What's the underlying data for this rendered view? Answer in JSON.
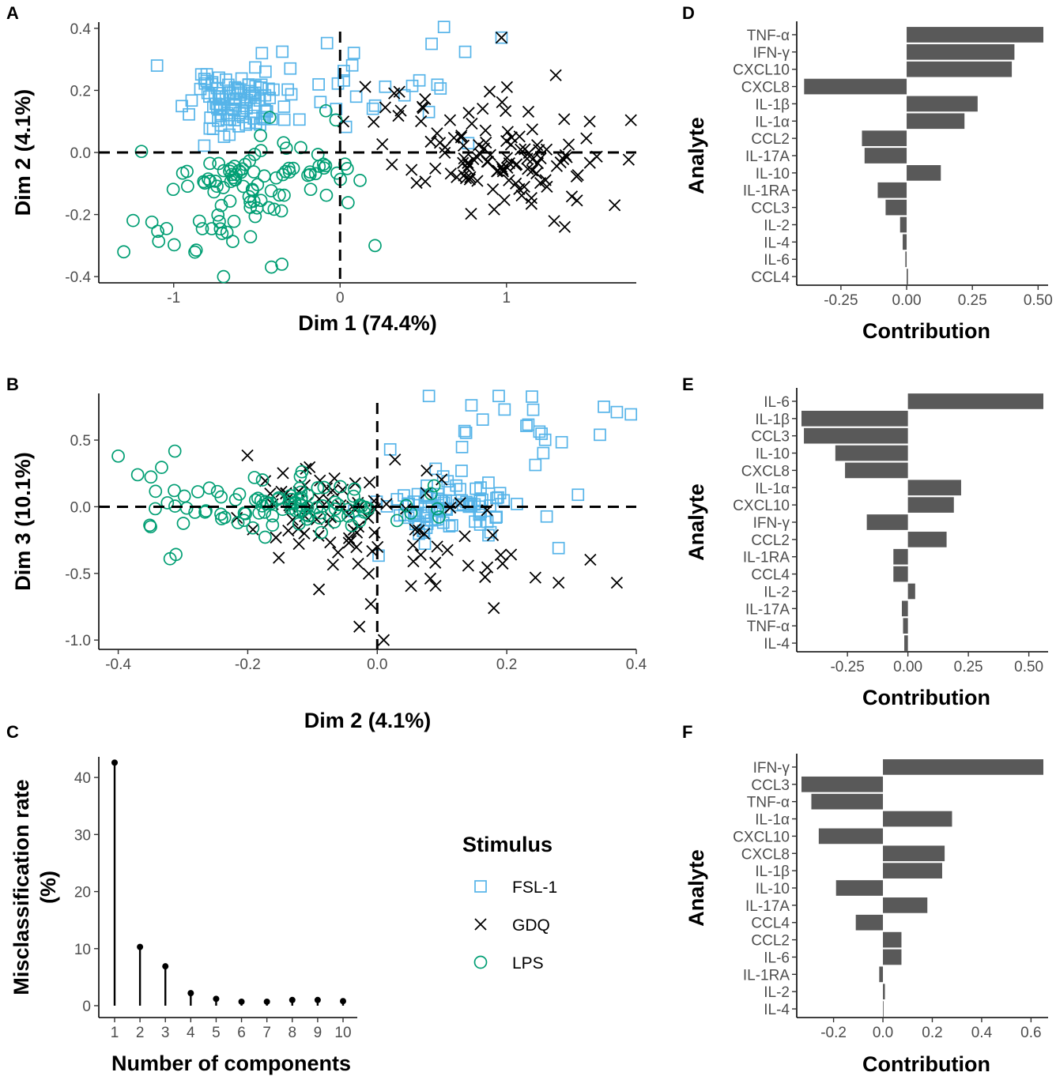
{
  "colors": {
    "FSL-1": "#56B4E9",
    "GDQ": "#000000",
    "LPS": "#009E73",
    "bar": "#595959"
  },
  "legend": {
    "title": "Stimulus",
    "items": [
      {
        "label": "FSL-1",
        "marker": "square"
      },
      {
        "label": "GDQ",
        "marker": "x"
      },
      {
        "label": "LPS",
        "marker": "circle"
      }
    ]
  },
  "chart_data": [
    {
      "id": "A",
      "panel_label": "A",
      "type": "scatter",
      "xlabel": "Dim 1 (74.4%)",
      "ylabel": "Dim 2 (4.1%)",
      "xlim": [
        -1.45,
        1.78
      ],
      "ylim": [
        -0.42,
        0.42
      ],
      "xticks": [
        -1,
        0,
        1
      ],
      "xtick_labels": [
        "-1",
        "0",
        "1"
      ],
      "yticks": [
        -0.4,
        -0.2,
        0.0,
        0.2,
        0.4
      ],
      "ytick_labels": [
        "-0.4",
        "-0.2",
        "0.0",
        "0.2",
        "0.4"
      ],
      "reference_lines": {
        "x": 0,
        "y": 0
      },
      "series": [
        {
          "name": "FSL-1",
          "marker": "square",
          "clusters": [
            {
              "cx": -0.62,
              "sx": 0.14,
              "cy": 0.15,
              "sy": 0.045,
              "n": 95
            },
            {
              "cx": -0.45,
              "sx": 0.25,
              "cy": 0.26,
              "sy": 0.04,
              "n": 12
            },
            {
              "cx": 0.25,
              "sx": 0.22,
              "cy": 0.22,
              "sy": 0.09,
              "n": 18
            }
          ],
          "points": [
            [
              0.55,
              0.35
            ],
            [
              0.97,
              0.37
            ],
            [
              0.77,
              0.03
            ],
            [
              -1.1,
              0.28
            ],
            [
              -0.47,
              0.32
            ]
          ]
        },
        {
          "name": "GDQ",
          "marker": "x",
          "clusters": [
            {
              "cx": 0.95,
              "sx": 0.28,
              "cy": -0.03,
              "sy": 0.075,
              "n": 100
            },
            {
              "cx": 0.7,
              "sx": 0.35,
              "cy": 0.15,
              "sy": 0.06,
              "n": 18
            }
          ],
          "points": [
            [
              0.97,
              0.37
            ],
            [
              1.65,
              -0.17
            ],
            [
              1.35,
              -0.24
            ],
            [
              1.5,
              0.1
            ],
            [
              0.02,
              0.1
            ]
          ]
        },
        {
          "name": "LPS",
          "marker": "circle",
          "clusters": [
            {
              "cx": -0.5,
              "sx": 0.2,
              "cy": -0.09,
              "sy": 0.065,
              "n": 65
            },
            {
              "cx": -0.85,
              "sx": 0.22,
              "cy": -0.24,
              "sy": 0.06,
              "n": 25
            },
            {
              "cx": -0.1,
              "sx": 0.09,
              "cy": -0.07,
              "sy": 0.05,
              "n": 12
            }
          ],
          "points": [
            [
              -1.3,
              -0.32
            ],
            [
              -0.7,
              -0.4
            ],
            [
              0.21,
              -0.3
            ],
            [
              0.12,
              -0.09
            ],
            [
              -0.35,
              -0.36
            ]
          ]
        }
      ]
    },
    {
      "id": "B",
      "panel_label": "B",
      "type": "scatter",
      "xlabel": "Dim 2 (4.1%)",
      "ylabel": "Dim 3 (10.1%)",
      "xlim": [
        -0.43,
        0.4
      ],
      "ylim": [
        -1.07,
        0.85
      ],
      "xticks": [
        -0.4,
        -0.2,
        0.0,
        0.2,
        0.4
      ],
      "xtick_labels": [
        "-0.4",
        "-0.2",
        "0.0",
        "0.2",
        "0.4"
      ],
      "yticks": [
        -1.0,
        -0.5,
        0.0,
        0.5
      ],
      "ytick_labels": [
        "-1.0",
        "-0.5",
        "0.0",
        "0.5"
      ],
      "reference_lines": {
        "x": 0,
        "y": 0
      },
      "series": [
        {
          "name": "FSL-1",
          "marker": "square",
          "clusters": [
            {
              "cx": 0.1,
              "sx": 0.055,
              "cy": 0.0,
              "sy": 0.11,
              "n": 85
            },
            {
              "cx": 0.2,
              "sx": 0.09,
              "cy": 0.55,
              "sy": 0.15,
              "n": 22
            }
          ],
          "points": [
            [
              0.37,
              0.71
            ],
            [
              0.35,
              0.75
            ],
            [
              0.31,
              0.09
            ],
            [
              0.28,
              -0.31
            ],
            [
              0.02,
              0.43
            ]
          ]
        },
        {
          "name": "GDQ",
          "marker": "x",
          "clusters": [
            {
              "cx": -0.03,
              "sx": 0.09,
              "cy": 0.0,
              "sy": 0.18,
              "n": 75
            },
            {
              "cx": 0.1,
              "sx": 0.12,
              "cy": -0.45,
              "sy": 0.2,
              "n": 22
            }
          ],
          "points": [
            [
              0.37,
              -0.57
            ],
            [
              0.01,
              -1.0
            ],
            [
              -0.09,
              -0.62
            ],
            [
              0.18,
              -0.76
            ],
            [
              0.28,
              -0.57
            ]
          ]
        },
        {
          "name": "LPS",
          "marker": "circle",
          "clusters": [
            {
              "cx": -0.12,
              "sx": 0.08,
              "cy": 0.0,
              "sy": 0.09,
              "n": 85
            },
            {
              "cx": -0.3,
              "sx": 0.06,
              "cy": 0.1,
              "sy": 0.15,
              "n": 15
            }
          ],
          "points": [
            [
              -0.4,
              0.38
            ],
            [
              -0.32,
              -0.39
            ],
            [
              -0.35,
              -0.15
            ],
            [
              -0.37,
              0.24
            ]
          ]
        }
      ]
    },
    {
      "id": "C",
      "panel_label": "C",
      "type": "lollipop",
      "xlabel": "Number of components",
      "ylabel": "Misclassification rate (%)",
      "ylabel_lines": [
        "Misclassification rate",
        "(%)"
      ],
      "categories": [
        "1",
        "2",
        "3",
        "4",
        "5",
        "6",
        "7",
        "8",
        "9",
        "10"
      ],
      "values": [
        42.6,
        10.3,
        6.9,
        2.2,
        1.2,
        0.7,
        0.7,
        1.0,
        1.0,
        0.8
      ],
      "ylim": [
        0,
        45
      ],
      "yticks": [
        0,
        10,
        20,
        30,
        40
      ],
      "ytick_labels": [
        "0",
        "10",
        "20",
        "30",
        "40"
      ]
    },
    {
      "id": "D",
      "panel_label": "D",
      "type": "bar",
      "xlabel": "Contribution",
      "ylabel": "Analyte",
      "categories": [
        "TNF-α",
        "IFN-γ",
        "CXCL10",
        "CXCL8",
        "IL-1β",
        "IL-1α",
        "CCL2",
        "IL-17A",
        "IL-10",
        "IL-1RA",
        "CCL3",
        "IL-2",
        "IL-4",
        "IL-6",
        "CCL4"
      ],
      "values": [
        0.52,
        0.41,
        0.4,
        -0.39,
        0.27,
        0.22,
        -0.17,
        -0.16,
        0.13,
        -0.11,
        -0.08,
        -0.025,
        -0.015,
        -0.005,
        0.005
      ],
      "xlim": [
        -0.4,
        0.52
      ],
      "xticks": [
        -0.25,
        0,
        0.25,
        0.5
      ],
      "xtick_labels": [
        "-0.25",
        "0.00",
        "0.25",
        "0.50"
      ]
    },
    {
      "id": "E",
      "panel_label": "E",
      "type": "bar",
      "xlabel": "Contribution",
      "ylabel": "Analyte",
      "categories": [
        "IL-6",
        "IL-1β",
        "CCL3",
        "IL-10",
        "CXCL8",
        "IL-1α",
        "CXCL10",
        "IFN-γ",
        "CCL2",
        "IL-1RA",
        "CCL4",
        "IL-2",
        "IL-17A",
        "TNF-α",
        "IL-4"
      ],
      "values": [
        0.56,
        -0.44,
        -0.43,
        -0.3,
        -0.26,
        0.22,
        0.19,
        -0.17,
        0.16,
        -0.06,
        -0.06,
        0.03,
        -0.025,
        -0.02,
        -0.015
      ],
      "xlim": [
        -0.44,
        0.56
      ],
      "xticks": [
        -0.25,
        0,
        0.25,
        0.5
      ],
      "xtick_labels": [
        "-0.25",
        "0.00",
        "0.25",
        "0.50"
      ]
    },
    {
      "id": "F",
      "panel_label": "F",
      "type": "bar",
      "xlabel": "Contribution",
      "ylabel": "Analyte",
      "categories": [
        "IFN-γ",
        "CCL3",
        "TNF-α",
        "IL-1α",
        "CXCL10",
        "CXCL8",
        "IL-1β",
        "IL-10",
        "IL-17A",
        "CCL4",
        "CCL2",
        "IL-6",
        "IL-1RA",
        "IL-2",
        "IL-4"
      ],
      "values": [
        0.65,
        -0.33,
        -0.29,
        0.28,
        -0.26,
        0.25,
        0.24,
        -0.19,
        0.18,
        -0.11,
        0.075,
        0.075,
        -0.015,
        0.008,
        0.002
      ],
      "xlim": [
        -0.33,
        0.65
      ],
      "xticks": [
        -0.2,
        0,
        0.2,
        0.4,
        0.6
      ],
      "xtick_labels": [
        "-0.2",
        "0.0",
        "0.2",
        "0.4",
        "0.6"
      ]
    }
  ]
}
